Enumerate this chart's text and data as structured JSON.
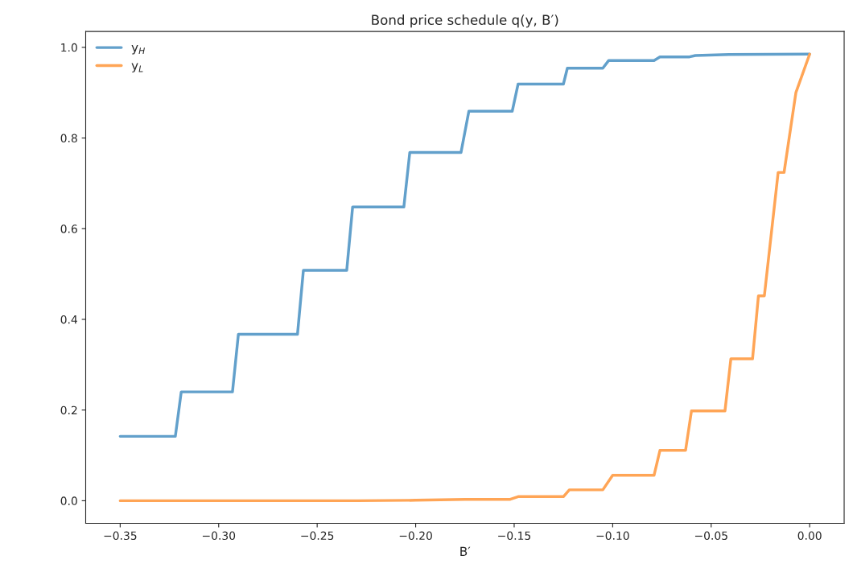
{
  "chart_data": {
    "type": "line",
    "title": "Bond price schedule q(y, B′)",
    "xlabel": "B′",
    "series": [
      {
        "name": "y$_{H}$",
        "color": "#62a0cb",
        "x": [
          -0.35,
          -0.322,
          -0.319,
          -0.293,
          -0.29,
          -0.26,
          -0.257,
          -0.235,
          -0.232,
          -0.206,
          -0.203,
          -0.177,
          -0.173,
          -0.151,
          -0.148,
          -0.125,
          -0.123,
          -0.105,
          -0.102,
          -0.079,
          -0.076,
          -0.061,
          -0.058,
          -0.041,
          0.0
        ],
        "values": [
          0.142,
          0.142,
          0.24,
          0.24,
          0.367,
          0.367,
          0.508,
          0.508,
          0.648,
          0.648,
          0.768,
          0.768,
          0.859,
          0.859,
          0.919,
          0.919,
          0.954,
          0.954,
          0.971,
          0.971,
          0.979,
          0.979,
          0.982,
          0.984,
          0.985
        ]
      },
      {
        "name": "y$_{L}$",
        "color": "#ffa556",
        "x": [
          -0.35,
          -0.23,
          -0.2,
          -0.175,
          -0.152,
          -0.148,
          -0.125,
          -0.122,
          -0.105,
          -0.1,
          -0.079,
          -0.076,
          -0.063,
          -0.06,
          -0.043,
          -0.04,
          -0.029,
          -0.026,
          -0.023,
          -0.016,
          -0.013,
          -0.007,
          0.0
        ],
        "values": [
          0.0,
          0.0,
          0.001,
          0.003,
          0.003,
          0.009,
          0.009,
          0.024,
          0.024,
          0.056,
          0.056,
          0.111,
          0.111,
          0.198,
          0.198,
          0.313,
          0.313,
          0.452,
          0.452,
          0.724,
          0.724,
          0.9,
          0.985
        ]
      }
    ],
    "xlim": [
      -0.3675,
      0.0175
    ],
    "ylim": [
      -0.05,
      1.035
    ],
    "xticks": [
      {
        "value": -0.35,
        "label": "−0.35"
      },
      {
        "value": -0.3,
        "label": "−0.30"
      },
      {
        "value": -0.25,
        "label": "−0.25"
      },
      {
        "value": -0.2,
        "label": "−0.20"
      },
      {
        "value": -0.15,
        "label": "−0.15"
      },
      {
        "value": -0.1,
        "label": "−0.10"
      },
      {
        "value": -0.05,
        "label": "−0.05"
      },
      {
        "value": 0.0,
        "label": "0.00"
      }
    ],
    "yticks": [
      {
        "value": 0.0,
        "label": "0.0"
      },
      {
        "value": 0.2,
        "label": "0.2"
      },
      {
        "value": 0.4,
        "label": "0.4"
      },
      {
        "value": 0.6,
        "label": "0.6"
      },
      {
        "value": 0.8,
        "label": "0.8"
      },
      {
        "value": 1.0,
        "label": "1.0"
      }
    ],
    "legend": "top left",
    "grid": false,
    "line_style": "solid"
  }
}
